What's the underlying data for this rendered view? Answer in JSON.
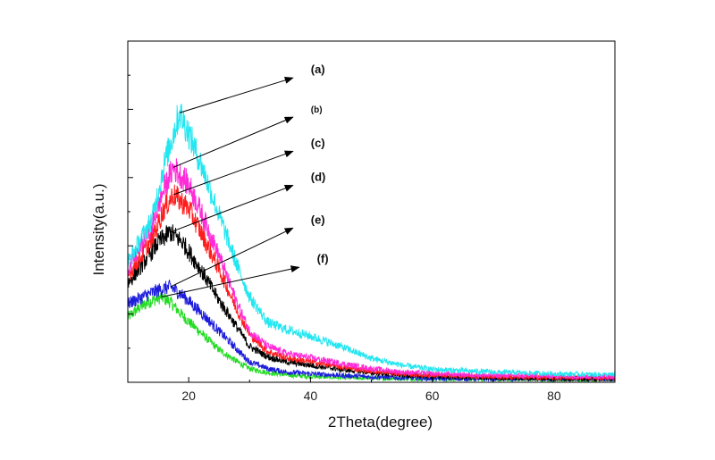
{
  "chart_data": {
    "type": "line",
    "xlabel": "2Theta(degree)",
    "ylabel": "Intensity(a.u.)",
    "xlim": [
      10,
      90
    ],
    "xticks": [
      20,
      40,
      60,
      80
    ],
    "y_tick_labels_shown": false,
    "ylim": [
      0,
      10
    ],
    "grid": false,
    "legend": "arrow callouts pointing to each curve peak, right of the curves",
    "series": [
      {
        "name": "(a)",
        "color": "#22e6f0",
        "peak_x": 18.5,
        "peak_y": 7.9,
        "x": [
          10,
          14,
          16,
          18,
          18.5,
          20,
          22,
          25,
          28,
          30,
          33,
          36,
          40,
          45,
          50,
          55,
          60,
          70,
          80,
          90
        ],
        "y": [
          3.5,
          4.8,
          6.4,
          7.6,
          7.9,
          7.3,
          6.4,
          4.9,
          3.4,
          2.5,
          1.75,
          1.55,
          1.35,
          1.05,
          0.7,
          0.5,
          0.38,
          0.3,
          0.25,
          0.22
        ]
      },
      {
        "name": "(b)",
        "color": "#ff2bd6",
        "peak_x": 17.5,
        "peak_y": 6.3,
        "x": [
          10,
          14,
          16,
          17.5,
          20,
          22,
          25,
          28,
          30,
          33,
          36,
          40,
          45,
          50,
          55,
          60,
          70,
          80,
          90
        ],
        "y": [
          3.3,
          4.6,
          5.7,
          6.3,
          5.8,
          5.0,
          3.7,
          2.3,
          1.5,
          1.05,
          0.85,
          0.72,
          0.55,
          0.4,
          0.3,
          0.25,
          0.2,
          0.18,
          0.16
        ]
      },
      {
        "name": "(c)",
        "color": "#ff1c1c",
        "peak_x": 17.5,
        "peak_y": 5.5,
        "x": [
          10,
          14,
          16,
          17.5,
          20,
          22,
          25,
          28,
          30,
          33,
          36,
          40,
          45,
          50,
          55,
          60,
          70,
          80,
          90
        ],
        "y": [
          3.1,
          4.2,
          5.1,
          5.5,
          5.1,
          4.4,
          3.3,
          2.1,
          1.4,
          0.9,
          0.72,
          0.6,
          0.45,
          0.33,
          0.25,
          0.2,
          0.16,
          0.14,
          0.13
        ]
      },
      {
        "name": "(d)",
        "color": "#000000",
        "peak_x": 17,
        "peak_y": 4.4,
        "x": [
          10,
          13,
          15,
          17,
          19,
          22,
          25,
          28,
          30,
          33,
          36,
          40,
          45,
          50,
          55,
          60,
          70,
          80,
          90
        ],
        "y": [
          2.9,
          3.6,
          4.1,
          4.4,
          4.1,
          3.3,
          2.4,
          1.6,
          1.05,
          0.75,
          0.6,
          0.5,
          0.38,
          0.28,
          0.21,
          0.17,
          0.13,
          0.11,
          0.1
        ]
      },
      {
        "name": "(e)",
        "color": "#1c1cdc",
        "peak_x": 17,
        "peak_y": 2.8,
        "x": [
          10,
          13,
          15,
          17,
          19,
          22,
          25,
          28,
          30,
          33,
          36,
          40,
          45,
          50,
          55,
          60,
          70,
          80,
          90
        ],
        "y": [
          2.3,
          2.55,
          2.7,
          2.8,
          2.55,
          2.05,
          1.5,
          0.95,
          0.6,
          0.4,
          0.3,
          0.25,
          0.2,
          0.16,
          0.13,
          0.11,
          0.1,
          0.09,
          0.09
        ]
      },
      {
        "name": "(f)",
        "color": "#22dc22",
        "peak_x": 15.5,
        "peak_y": 2.5,
        "x": [
          10,
          12,
          14,
          15.5,
          17,
          19,
          22,
          25,
          28,
          30,
          33,
          36,
          40,
          45,
          50,
          60,
          70,
          80,
          90
        ],
        "y": [
          1.9,
          2.2,
          2.4,
          2.5,
          2.35,
          1.95,
          1.45,
          0.95,
          0.6,
          0.4,
          0.28,
          0.22,
          0.17,
          0.14,
          0.12,
          0.1,
          0.09,
          0.08,
          0.08
        ]
      }
    ],
    "callouts": [
      {
        "series": "(a)",
        "label_x": 38,
        "label_y": 9.0,
        "font_size": 13
      },
      {
        "series": "(b)",
        "label_x": 38,
        "label_y": 7.85,
        "font_size": 10
      },
      {
        "series": "(c)",
        "label_x": 38,
        "label_y": 6.85,
        "font_size": 13
      },
      {
        "series": "(d)",
        "label_x": 38,
        "label_y": 5.85,
        "font_size": 13
      },
      {
        "series": "(e)",
        "label_x": 38,
        "label_y": 4.6,
        "font_size": 13
      },
      {
        "series": "(f)",
        "label_x": 39,
        "label_y": 3.45,
        "font_size": 13
      }
    ]
  }
}
